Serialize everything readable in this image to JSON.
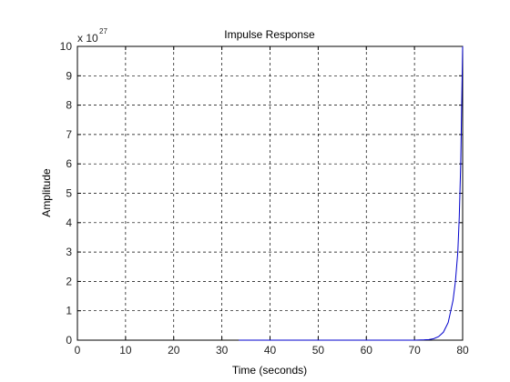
{
  "chart_data": {
    "type": "line",
    "title": "Impulse Response",
    "xlabel": "Time (seconds)",
    "ylabel": "Amplitude",
    "y_multiplier_base": "x 10",
    "y_multiplier_exponent": "27",
    "xlim": [
      0,
      80
    ],
    "ylim": [
      0,
      10
    ],
    "xticks": [
      0,
      10,
      20,
      30,
      40,
      50,
      60,
      70,
      80
    ],
    "yticks": [
      0,
      1,
      2,
      3,
      4,
      5,
      6,
      7,
      8,
      9,
      10
    ],
    "grid": true,
    "legend": "none",
    "series": [
      {
        "color": "#0000cc",
        "x": [
          33.5,
          40,
          50,
          60,
          70,
          72,
          73,
          74,
          75,
          76,
          77,
          78,
          78.5,
          79,
          79.3,
          79.6,
          80
        ],
        "y": [
          0,
          0,
          0,
          0,
          0,
          0.01,
          0.02,
          0.05,
          0.12,
          0.27,
          0.6,
          1.35,
          2.0,
          3.0,
          4.2,
          6.0,
          10.0
        ]
      }
    ]
  }
}
